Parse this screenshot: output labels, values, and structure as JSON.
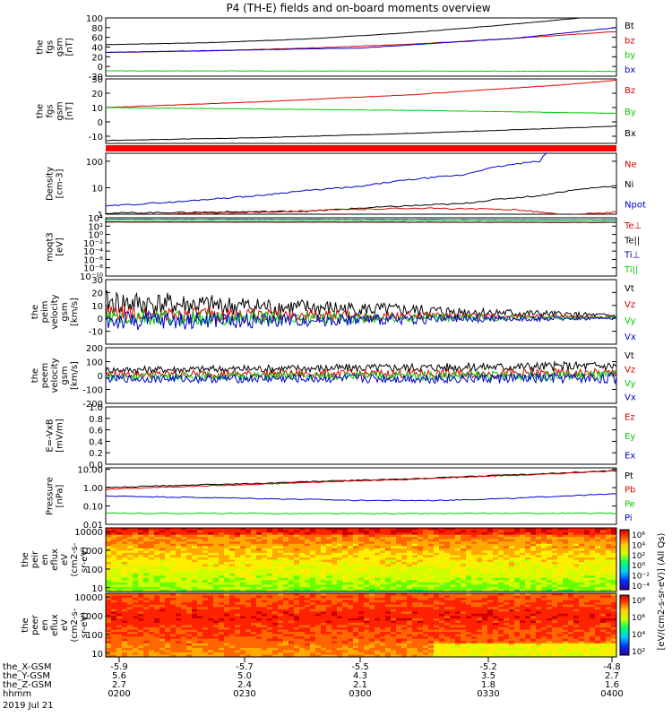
{
  "title": "P4 (TH-E) fields and on-board moments overview",
  "colors": {
    "black": "#000000",
    "red": "#dd0000",
    "green": "#00cc00",
    "blue": "#0000cc"
  },
  "panels": [
    {
      "id": "fgs-gsm",
      "ylabel": [
        "the",
        "fgs",
        "gsm",
        "[nT]"
      ],
      "ylim": [
        -20,
        100
      ],
      "ticks": [
        {
          "v": 100,
          "t": "100"
        },
        {
          "v": 80,
          "t": "80"
        },
        {
          "v": 60,
          "t": "60"
        },
        {
          "v": 40,
          "t": "40"
        },
        {
          "v": 20,
          "t": "20"
        },
        {
          "v": 0,
          "t": "0"
        },
        {
          "v": -20,
          "t": "-20"
        }
      ],
      "legend": [
        {
          "t": "Bt",
          "c": "black"
        },
        {
          "t": "bz",
          "c": "red"
        },
        {
          "t": "by",
          "c": "green"
        },
        {
          "t": "bx",
          "c": "blue"
        }
      ],
      "series": [
        {
          "name": "Bt",
          "color": "black",
          "x": [
            0,
            0.2,
            0.4,
            0.6,
            0.75,
            0.9,
            1.0
          ],
          "y": [
            45,
            49,
            57,
            70,
            83,
            97,
            108
          ]
        },
        {
          "name": "bz",
          "color": "red",
          "x": [
            0,
            0.2,
            0.4,
            0.6,
            0.8,
            1.0
          ],
          "y": [
            29,
            32,
            38,
            46,
            58,
            72
          ]
        },
        {
          "name": "by",
          "color": "green",
          "x": [
            0,
            0.5,
            1.0
          ],
          "y": [
            -9,
            -9.5,
            -10
          ]
        },
        {
          "name": "bx",
          "color": "blue",
          "x": [
            0,
            0.5,
            0.8,
            1.0
          ],
          "y": [
            29,
            38,
            58,
            80
          ]
        }
      ]
    },
    {
      "id": "fgs-gsm-zoom",
      "ylabel": [
        "the",
        "fgs",
        "gsm",
        "[nT]"
      ],
      "ylim": [
        -15,
        30
      ],
      "ticks": [
        {
          "v": 30,
          "t": "30"
        },
        {
          "v": 20,
          "t": "20"
        },
        {
          "v": 10,
          "t": "10"
        },
        {
          "v": 0,
          "t": "0"
        },
        {
          "v": -10,
          "t": "-10"
        }
      ],
      "legend": [
        {
          "t": "Bz",
          "c": "red"
        },
        {
          "t": "By",
          "c": "green"
        },
        {
          "t": "Bx",
          "c": "black"
        }
      ],
      "series": [
        {
          "name": "Bz",
          "color": "red",
          "x": [
            0,
            0.3,
            0.6,
            0.9,
            1.0
          ],
          "y": [
            10,
            14,
            19,
            26,
            29
          ]
        },
        {
          "name": "By",
          "color": "green",
          "x": [
            0,
            0.3,
            0.6,
            1.0
          ],
          "y": [
            10,
            9,
            8,
            6
          ]
        },
        {
          "name": "Bx",
          "color": "black",
          "x": [
            0,
            0.3,
            0.6,
            1.0
          ],
          "y": [
            -13,
            -11,
            -8,
            -3
          ]
        }
      ]
    },
    {
      "id": "density",
      "ylabel": [
        "Density",
        "[cm-3]"
      ],
      "ylim": [
        1,
        200
      ],
      "log": true,
      "ticks": [
        {
          "v": 100,
          "t": "100"
        },
        {
          "v": 10,
          "t": "10"
        },
        {
          "v": 1,
          "t": "1"
        }
      ],
      "legend": [
        {
          "t": "Ne",
          "c": "red"
        },
        {
          "t": "Ni",
          "c": "black"
        },
        {
          "t": "Npot",
          "c": "blue"
        }
      ],
      "series": [
        {
          "name": "Npot",
          "color": "blue",
          "x": [
            0,
            0.15,
            0.3,
            0.5,
            0.7,
            0.85,
            0.87,
            0.92,
            0.95
          ],
          "y": [
            2,
            3,
            5,
            11,
            30,
            100,
            250,
            250,
            250
          ]
        },
        {
          "name": "Ni",
          "color": "black",
          "x": [
            0,
            0.4,
            0.7,
            0.85,
            1.0
          ],
          "y": [
            1.1,
            1.3,
            2.5,
            5,
            12
          ]
        },
        {
          "name": "Ne",
          "color": "red",
          "x": [
            0,
            0.3,
            0.6,
            0.8,
            0.9,
            1.0
          ],
          "y": [
            0.9,
            1.2,
            1.7,
            1.5,
            0.9,
            1.2
          ]
        }
      ]
    },
    {
      "id": "moqt3",
      "ylabel": [
        "moqt3",
        "[eV]"
      ],
      "ylim": [
        -10,
        4
      ],
      "log": true,
      "ticks": [
        {
          "v": 4,
          "t": "10⁴"
        },
        {
          "v": 2,
          "t": "10²"
        },
        {
          "v": 0,
          "t": "10⁰"
        },
        {
          "v": -2,
          "t": "10⁻²"
        },
        {
          "v": -4,
          "t": "10⁻⁴"
        },
        {
          "v": -6,
          "t": "10⁻⁶"
        },
        {
          "v": -8,
          "t": "10⁻⁸"
        },
        {
          "v": -10,
          "t": "10⁻¹⁰"
        }
      ],
      "legend": [
        {
          "t": "Te⊥",
          "c": "red"
        },
        {
          "t": "Te||",
          "c": "black"
        },
        {
          "t": "Ti⊥",
          "c": "blue"
        },
        {
          "t": "Ti||",
          "c": "green"
        }
      ],
      "series": [
        {
          "name": "Ti⊥",
          "color": "blue",
          "x": [
            0,
            1.0
          ],
          "y": [
            3.6,
            3.5
          ]
        },
        {
          "name": "Ti||",
          "color": "green",
          "x": [
            0,
            1.0
          ],
          "y": [
            3.5,
            3.4
          ]
        },
        {
          "name": "Te⊥",
          "color": "red",
          "x": [
            0,
            1.0
          ],
          "y": [
            3.0,
            2.9
          ]
        },
        {
          "name": "Te||",
          "color": "black",
          "x": [
            0,
            1.0
          ],
          "y": [
            3.0,
            2.9
          ]
        }
      ]
    },
    {
      "id": "peim-velocity",
      "ylabel": [
        "the",
        "peim",
        "velocity",
        "gsm",
        "[km/s]"
      ],
      "ylim": [
        -20,
        30
      ],
      "ticks": [
        {
          "v": 30,
          "t": "30"
        },
        {
          "v": 20,
          "t": "20"
        },
        {
          "v": 10,
          "t": "10"
        },
        {
          "v": 0,
          "t": "0"
        },
        {
          "v": -10,
          "t": "-10"
        }
      ],
      "legend": [
        {
          "t": "Vt",
          "c": "black"
        },
        {
          "t": "Vz",
          "c": "red"
        },
        {
          "t": "Vy",
          "c": "green"
        },
        {
          "t": "Vx",
          "c": "blue"
        }
      ],
      "series": [
        {
          "name": "Vt",
          "color": "black",
          "noisy": [
            10,
            1.5
          ],
          "x": [
            0,
            1.0
          ],
          "y": [
            12,
            2
          ]
        },
        {
          "name": "Vz",
          "color": "red",
          "noisy": [
            7,
            0.8
          ],
          "x": [
            0,
            1.0
          ],
          "y": [
            3,
            1
          ]
        },
        {
          "name": "Vy",
          "color": "green",
          "noisy": [
            7,
            0.7
          ],
          "x": [
            0,
            1.0
          ],
          "y": [
            0,
            0.5
          ]
        },
        {
          "name": "Vx",
          "color": "blue",
          "noisy": [
            8,
            0.8
          ],
          "x": [
            0,
            1.0
          ],
          "y": [
            -2,
            0
          ]
        }
      ]
    },
    {
      "id": "peem-velocity",
      "ylabel": [
        "the",
        "peem",
        "velocity",
        "gsm",
        "[km/s]"
      ],
      "ylim": [
        -200,
        200
      ],
      "ticks": [
        {
          "v": 200,
          "t": "200"
        },
        {
          "v": 100,
          "t": "100"
        },
        {
          "v": 0,
          "t": "0"
        },
        {
          "v": -100,
          "t": "-100"
        },
        {
          "v": -200,
          "t": "-200"
        }
      ],
      "legend": [
        {
          "t": "Vt",
          "c": "black"
        },
        {
          "t": "Vz",
          "c": "red"
        },
        {
          "t": "Vy",
          "c": "green"
        },
        {
          "t": "Vx",
          "c": "blue"
        }
      ],
      "series": [
        {
          "name": "Vt",
          "color": "black",
          "noisy": [
            25,
            35
          ],
          "x": [
            0,
            1.0
          ],
          "y": [
            40,
            70
          ]
        },
        {
          "name": "Vz",
          "color": "red",
          "noisy": [
            25,
            35
          ],
          "x": [
            0,
            1.0
          ],
          "y": [
            10,
            15
          ]
        },
        {
          "name": "Vy",
          "color": "green",
          "noisy": [
            25,
            35
          ],
          "x": [
            0,
            1.0
          ],
          "y": [
            -5,
            0
          ]
        },
        {
          "name": "Vx",
          "color": "blue",
          "noisy": [
            25,
            40
          ],
          "x": [
            0,
            1.0
          ],
          "y": [
            -25,
            -20
          ]
        }
      ]
    },
    {
      "id": "vxb",
      "ylabel": [
        "E=-VxB",
        "[mV/m]"
      ],
      "ylim": [
        0,
        1
      ],
      "ticks": [
        {
          "v": 1,
          "t": "1.0"
        },
        {
          "v": 0.8,
          "t": "0.8"
        },
        {
          "v": 0.6,
          "t": "0.6"
        },
        {
          "v": 0.4,
          "t": "0.4"
        },
        {
          "v": 0.2,
          "t": "0.2"
        },
        {
          "v": 0,
          "t": "0.0"
        }
      ],
      "legend": [
        {
          "t": "Ez",
          "c": "red"
        },
        {
          "t": "Ey",
          "c": "green"
        },
        {
          "t": "Ex",
          "c": "blue"
        }
      ],
      "series": []
    },
    {
      "id": "pressure",
      "ylabel": [
        "Pressure",
        "[nPa]"
      ],
      "ylim": [
        0.01,
        12
      ],
      "log": true,
      "ticks": [
        {
          "v": 10,
          "t": "10.00"
        },
        {
          "v": 1,
          "t": "1.00"
        },
        {
          "v": 0.1,
          "t": "0.10"
        },
        {
          "v": 0.01,
          "t": "0.01"
        }
      ],
      "legend": [
        {
          "t": "Pt",
          "c": "black"
        },
        {
          "t": "Pb",
          "c": "red"
        },
        {
          "t": "Pe",
          "c": "green"
        },
        {
          "t": "Pi",
          "c": "blue"
        }
      ],
      "series": [
        {
          "name": "Pt",
          "color": "black",
          "x": [
            0,
            0.3,
            0.6,
            0.85,
            1.0
          ],
          "y": [
            1.0,
            1.7,
            3.0,
            5.5,
            8.5
          ]
        },
        {
          "name": "Pb",
          "color": "red",
          "x": [
            0,
            0.3,
            0.6,
            0.85,
            1.0
          ],
          "y": [
            0.8,
            1.5,
            2.8,
            5.2,
            8.0
          ]
        },
        {
          "name": "Pi",
          "color": "blue",
          "x": [
            0,
            0.15,
            0.35,
            0.5,
            0.65,
            0.8,
            1.0
          ],
          "y": [
            0.35,
            0.3,
            0.24,
            0.2,
            0.2,
            0.26,
            0.45
          ]
        },
        {
          "name": "Pe",
          "color": "green",
          "x": [
            0,
            0.5,
            1.0
          ],
          "y": [
            0.04,
            0.038,
            0.04
          ]
        }
      ]
    }
  ],
  "spectrograms": [
    {
      "id": "peir-en-eflux",
      "ylabel": [
        "the",
        "peir",
        "en",
        "eflux",
        "eV",
        "(cm2-s-",
        "sr-eV)"
      ],
      "ticks": [
        {
          "v": 10000,
          "t": "10000"
        },
        {
          "v": 1000,
          "t": "1000"
        },
        {
          "v": 100,
          "t": "100"
        },
        {
          "v": 10,
          "t": "10"
        }
      ],
      "colorbar_ticks": [
        "10⁶",
        "10⁴",
        "10²",
        "10⁰",
        "10⁻²",
        "10⁻⁴"
      ]
    },
    {
      "id": "peer-en-eflux",
      "ylabel": [
        "the",
        "peer",
        "en",
        "eflux",
        "eV",
        "(cm2-s-",
        "sr-eV)"
      ],
      "ticks": [
        {
          "v": 10000,
          "t": "10000"
        },
        {
          "v": 1000,
          "t": "1000"
        },
        {
          "v": 100,
          "t": "100"
        },
        {
          "v": 10,
          "t": "10"
        }
      ],
      "colorbar_ticks": [
        "10⁸",
        "10⁶",
        "10⁴",
        "10²"
      ]
    }
  ],
  "colorbar_label": "[eV/(cm2-s-sr-eV)] (All Qs)",
  "xaxis": {
    "rows": [
      {
        "label": "the_X-GSM",
        "values": [
          "-5.9",
          "-5.7",
          "-5.5",
          "-5.2",
          "-4.8"
        ]
      },
      {
        "label": "the_Y-GSM",
        "values": [
          "5.6",
          "5.0",
          "4.3",
          "3.5",
          "2.7"
        ]
      },
      {
        "label": "the_Z-GSM",
        "values": [
          "2.7",
          "2.4",
          "2.1",
          "1.8",
          "1.6"
        ]
      },
      {
        "label": "hhmm",
        "values": [
          "0200",
          "0230",
          "0300",
          "0330",
          "0400"
        ]
      }
    ],
    "date": "2019 Jul 21"
  }
}
